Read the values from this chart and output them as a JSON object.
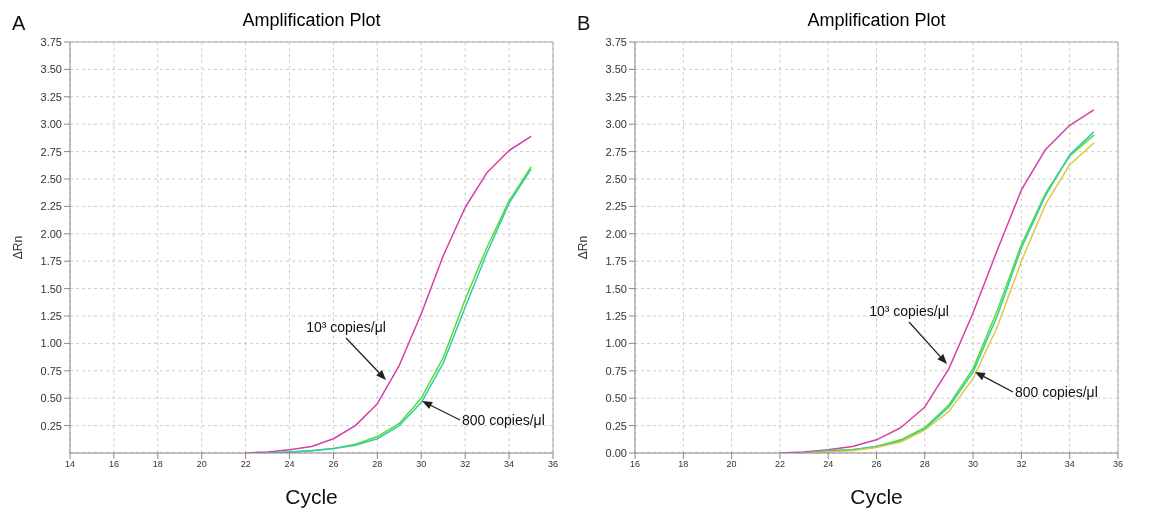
{
  "chart_data": [
    {
      "type": "line",
      "title": "Amplification Plot",
      "xlabel": "Cycle",
      "ylabel": "ΔRn",
      "grid": true,
      "x": [
        22,
        23,
        24,
        25,
        26,
        27,
        28,
        29,
        30,
        31,
        32,
        33,
        34,
        35
      ],
      "xlim": [
        14,
        36
      ],
      "xticks": [
        14,
        16,
        18,
        20,
        22,
        24,
        26,
        28,
        30,
        32,
        34,
        36
      ],
      "ylim": [
        0,
        3.75
      ],
      "yticks": [
        {
          "value": 0.25,
          "label": "0.25"
        },
        {
          "value": 0.5,
          "label": "0.50"
        },
        {
          "value": 0.75,
          "label": "0.75"
        },
        {
          "value": 1,
          "label": "1.00"
        },
        {
          "value": 1.25,
          "label": "1.25"
        },
        {
          "value": 1.5,
          "label": "1.50"
        },
        {
          "value": 1.75,
          "label": "1.75"
        },
        {
          "value": 2,
          "label": "2.00"
        },
        {
          "value": 2.25,
          "label": "2.25"
        },
        {
          "value": 2.5,
          "label": "2.50"
        },
        {
          "value": 2.75,
          "label": "2.75"
        },
        {
          "value": 3,
          "label": "3.00"
        },
        {
          "value": 3.25,
          "label": "3.25"
        },
        {
          "value": 3.5,
          "label": "3.50"
        },
        {
          "value": 3.75,
          "label": "3.75"
        }
      ],
      "series": [
        {
          "color": "#d63fa8",
          "values": [
            0,
            0.01,
            0.03,
            0.06,
            0.13,
            0.25,
            0.45,
            0.8,
            1.27,
            1.8,
            2.24,
            2.56,
            2.76,
            2.89
          ]
        },
        {
          "color": "#55dd33",
          "values": [
            null,
            0,
            0.01,
            0.02,
            0.04,
            0.08,
            0.15,
            0.27,
            0.5,
            0.87,
            1.4,
            1.88,
            2.3,
            2.61
          ]
        },
        {
          "color": "#33ccaa",
          "values": [
            null,
            0,
            0.01,
            0.02,
            0.04,
            0.07,
            0.13,
            0.25,
            0.46,
            0.82,
            1.33,
            1.83,
            2.28,
            2.59
          ]
        }
      ],
      "annotations": [
        "A",
        "10³ copies/μl",
        "800 copies/μl"
      ]
    },
    {
      "type": "line",
      "title": "Amplification Plot",
      "xlabel": "Cycle",
      "ylabel": "ΔRn",
      "grid": true,
      "x": [
        22,
        23,
        24,
        25,
        26,
        27,
        28,
        29,
        30,
        31,
        32,
        33,
        34,
        35
      ],
      "xlim": [
        16,
        36
      ],
      "xticks": [
        16,
        18,
        20,
        22,
        24,
        26,
        28,
        30,
        32,
        34,
        36
      ],
      "ylim": [
        0,
        3.75
      ],
      "yticks": [
        {
          "value": 0,
          "label": "0.00"
        },
        {
          "value": 0.25,
          "label": "0.25"
        },
        {
          "value": 0.5,
          "label": "0.50"
        },
        {
          "value": 0.75,
          "label": "0.75"
        },
        {
          "value": 1,
          "label": "1.00"
        },
        {
          "value": 1.25,
          "label": "1.25"
        },
        {
          "value": 1.5,
          "label": "1.50"
        },
        {
          "value": 1.75,
          "label": "1.75"
        },
        {
          "value": 2,
          "label": "2.00"
        },
        {
          "value": 2.25,
          "label": "2.25"
        },
        {
          "value": 2.5,
          "label": "2.50"
        },
        {
          "value": 2.75,
          "label": "2.75"
        },
        {
          "value": 3,
          "label": "3.00"
        },
        {
          "value": 3.25,
          "label": "3.25"
        },
        {
          "value": 3.5,
          "label": "3.50"
        },
        {
          "value": 3.75,
          "label": "3.75"
        }
      ],
      "series": [
        {
          "color": "#d63fa8",
          "values": [
            0,
            0.01,
            0.03,
            0.06,
            0.12,
            0.23,
            0.42,
            0.77,
            1.28,
            1.85,
            2.4,
            2.77,
            2.99,
            3.13
          ]
        },
        {
          "color": "#55dd33",
          "values": [
            null,
            0,
            0.02,
            0.03,
            0.06,
            0.12,
            0.23,
            0.44,
            0.77,
            1.3,
            1.9,
            2.37,
            2.71,
            2.9
          ]
        },
        {
          "color": "#33ccaa",
          "values": [
            null,
            0,
            0.02,
            0.03,
            0.06,
            0.11,
            0.22,
            0.42,
            0.74,
            1.25,
            1.87,
            2.35,
            2.72,
            2.93
          ]
        },
        {
          "color": "#e0c840",
          "values": [
            null,
            0,
            0.01,
            0.02,
            0.05,
            0.1,
            0.21,
            0.38,
            0.68,
            1.15,
            1.75,
            2.27,
            2.63,
            2.83
          ]
        }
      ],
      "annotations": [
        "B",
        "10³ copies/μl",
        "800 copies/μl"
      ]
    }
  ]
}
